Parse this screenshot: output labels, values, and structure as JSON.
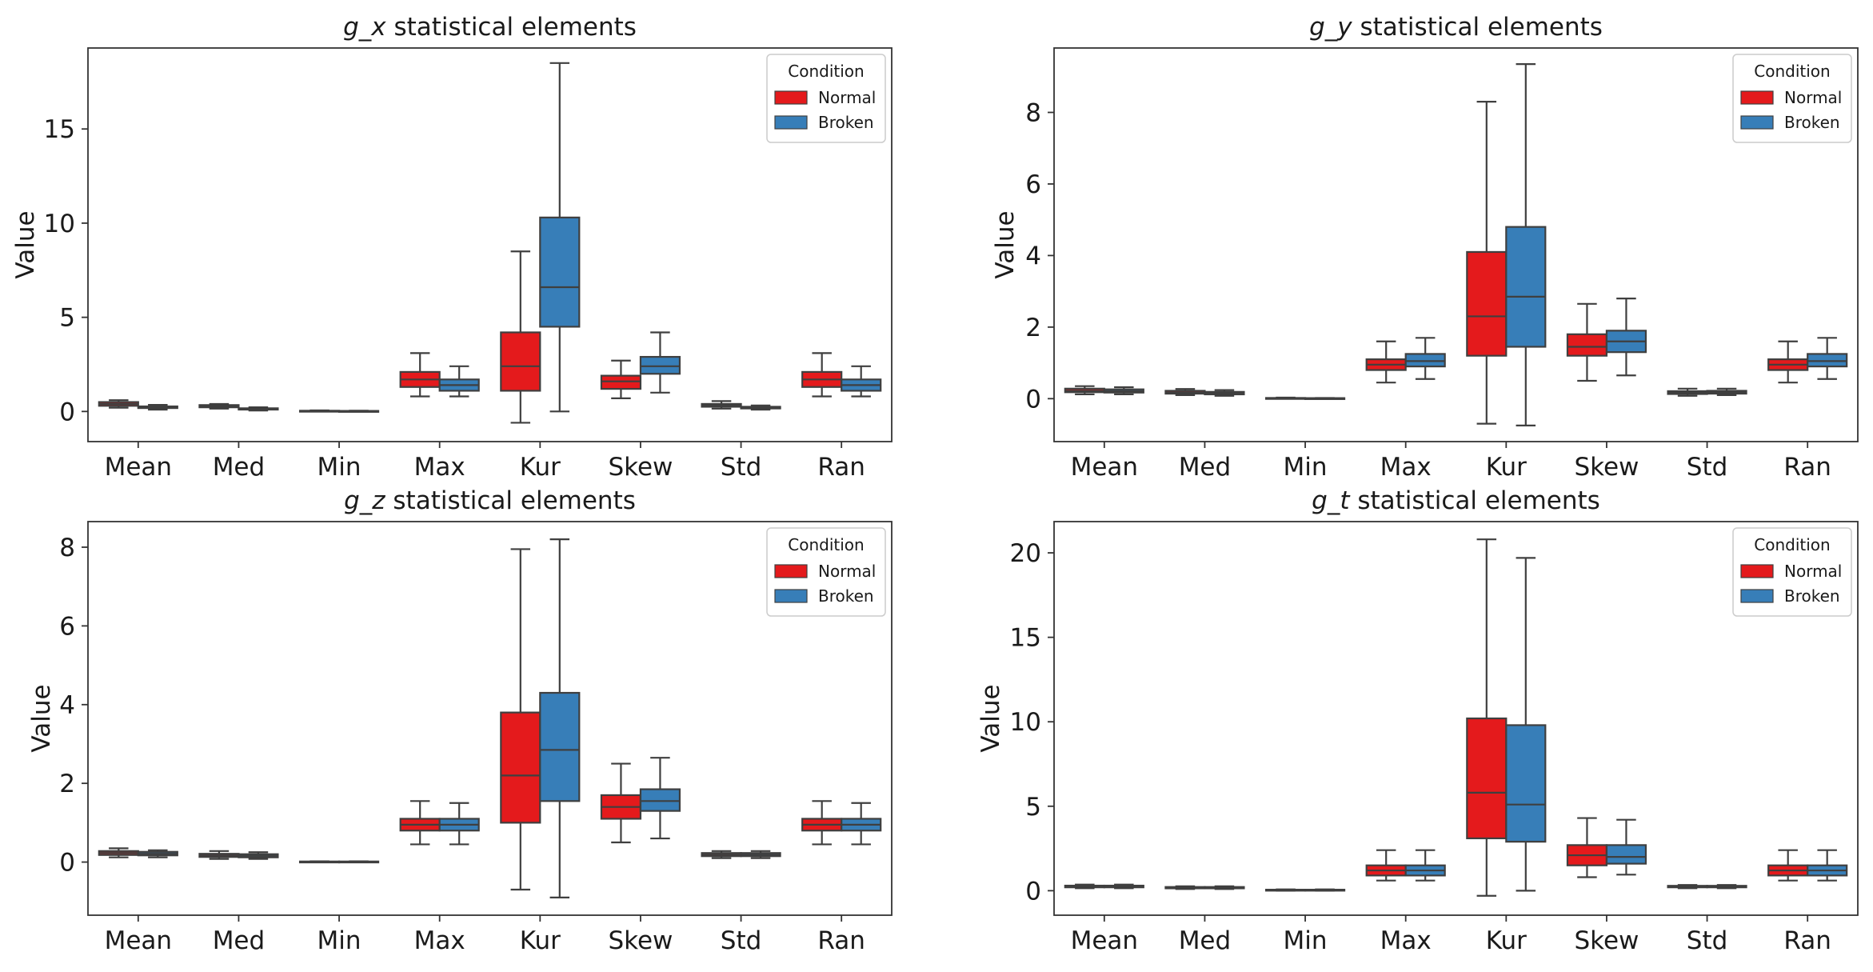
{
  "chart_data": [
    {
      "type": "boxplot",
      "title_var": "g_x",
      "title_rest": " statistical elements",
      "ylabel": "Value",
      "ylim": [
        -1.6,
        19.3
      ],
      "yticks": [
        0,
        5,
        10,
        15
      ],
      "categories": [
        "Mean",
        "Med",
        "Min",
        "Max",
        "Kur",
        "Skew",
        "Std",
        "Ran"
      ],
      "legend": {
        "title": "Condition",
        "items": [
          "Normal",
          "Broken"
        ]
      },
      "series": [
        {
          "name": "Normal",
          "color": "#e41a1c",
          "boxes": [
            {
              "min": 0.2,
              "q1": 0.3,
              "med": 0.4,
              "q3": 0.5,
              "max": 0.6
            },
            {
              "min": 0.15,
              "q1": 0.22,
              "med": 0.28,
              "q3": 0.34,
              "max": 0.4
            },
            {
              "min": 0.0,
              "q1": 0.02,
              "med": 0.03,
              "q3": 0.04,
              "max": 0.06
            },
            {
              "min": 0.8,
              "q1": 1.3,
              "med": 1.7,
              "q3": 2.1,
              "max": 3.1
            },
            {
              "min": -0.6,
              "q1": 1.1,
              "med": 2.4,
              "q3": 4.2,
              "max": 8.5
            },
            {
              "min": 0.7,
              "q1": 1.2,
              "med": 1.6,
              "q3": 1.9,
              "max": 2.7
            },
            {
              "min": 0.15,
              "q1": 0.25,
              "med": 0.32,
              "q3": 0.4,
              "max": 0.55
            },
            {
              "min": 0.8,
              "q1": 1.3,
              "med": 1.7,
              "q3": 2.1,
              "max": 3.1
            }
          ]
        },
        {
          "name": "Broken",
          "color": "#377eb8",
          "boxes": [
            {
              "min": 0.1,
              "q1": 0.18,
              "med": 0.22,
              "q3": 0.27,
              "max": 0.35
            },
            {
              "min": 0.05,
              "q1": 0.1,
              "med": 0.13,
              "q3": 0.17,
              "max": 0.22
            },
            {
              "min": 0.0,
              "q1": 0.01,
              "med": 0.02,
              "q3": 0.03,
              "max": 0.04
            },
            {
              "min": 0.8,
              "q1": 1.1,
              "med": 1.4,
              "q3": 1.7,
              "max": 2.4
            },
            {
              "min": 0.0,
              "q1": 4.5,
              "med": 6.6,
              "q3": 10.3,
              "max": 18.5
            },
            {
              "min": 1.0,
              "q1": 2.0,
              "med": 2.4,
              "q3": 2.9,
              "max": 4.2
            },
            {
              "min": 0.1,
              "q1": 0.16,
              "med": 0.2,
              "q3": 0.25,
              "max": 0.32
            },
            {
              "min": 0.8,
              "q1": 1.1,
              "med": 1.4,
              "q3": 1.7,
              "max": 2.4
            }
          ]
        }
      ]
    },
    {
      "type": "boxplot",
      "title_var": "g_y",
      "title_rest": " statistical elements",
      "ylabel": "Value",
      "ylim": [
        -1.2,
        9.8
      ],
      "yticks": [
        0,
        2,
        4,
        6,
        8
      ],
      "categories": [
        "Mean",
        "Med",
        "Min",
        "Max",
        "Kur",
        "Skew",
        "Std",
        "Ran"
      ],
      "legend": {
        "title": "Condition",
        "items": [
          "Normal",
          "Broken"
        ]
      },
      "series": [
        {
          "name": "Normal",
          "color": "#e41a1c",
          "boxes": [
            {
              "min": 0.12,
              "q1": 0.18,
              "med": 0.22,
              "q3": 0.28,
              "max": 0.35
            },
            {
              "min": 0.1,
              "q1": 0.14,
              "med": 0.17,
              "q3": 0.22,
              "max": 0.27
            },
            {
              "min": 0.0,
              "q1": 0.0,
              "med": 0.01,
              "q3": 0.02,
              "max": 0.03
            },
            {
              "min": 0.45,
              "q1": 0.8,
              "med": 0.95,
              "q3": 1.1,
              "max": 1.6
            },
            {
              "min": -0.7,
              "q1": 1.2,
              "med": 2.3,
              "q3": 4.1,
              "max": 8.3
            },
            {
              "min": 0.5,
              "q1": 1.2,
              "med": 1.45,
              "q3": 1.8,
              "max": 2.65
            },
            {
              "min": 0.08,
              "q1": 0.13,
              "med": 0.17,
              "q3": 0.21,
              "max": 0.28
            },
            {
              "min": 0.45,
              "q1": 0.8,
              "med": 0.95,
              "q3": 1.1,
              "max": 1.6
            }
          ]
        },
        {
          "name": "Broken",
          "color": "#377eb8",
          "boxes": [
            {
              "min": 0.12,
              "q1": 0.17,
              "med": 0.21,
              "q3": 0.26,
              "max": 0.32
            },
            {
              "min": 0.08,
              "q1": 0.12,
              "med": 0.15,
              "q3": 0.19,
              "max": 0.24
            },
            {
              "min": 0.0,
              "q1": 0.0,
              "med": 0.01,
              "q3": 0.015,
              "max": 0.02
            },
            {
              "min": 0.55,
              "q1": 0.9,
              "med": 1.05,
              "q3": 1.25,
              "max": 1.7
            },
            {
              "min": -0.75,
              "q1": 1.45,
              "med": 2.85,
              "q3": 4.8,
              "max": 9.35
            },
            {
              "min": 0.65,
              "q1": 1.3,
              "med": 1.6,
              "q3": 1.9,
              "max": 2.8
            },
            {
              "min": 0.1,
              "q1": 0.14,
              "med": 0.18,
              "q3": 0.22,
              "max": 0.28
            },
            {
              "min": 0.55,
              "q1": 0.9,
              "med": 1.05,
              "q3": 1.25,
              "max": 1.7
            }
          ]
        }
      ]
    },
    {
      "type": "boxplot",
      "title_var": "g_z",
      "title_rest": " statistical elements",
      "ylabel": "Value",
      "ylim": [
        -1.35,
        8.65
      ],
      "yticks": [
        0,
        2,
        4,
        6,
        8
      ],
      "categories": [
        "Mean",
        "Med",
        "Min",
        "Max",
        "Kur",
        "Skew",
        "Std",
        "Ran"
      ],
      "legend": {
        "title": "Condition",
        "items": [
          "Normal",
          "Broken"
        ]
      },
      "series": [
        {
          "name": "Normal",
          "color": "#e41a1c",
          "boxes": [
            {
              "min": 0.12,
              "q1": 0.18,
              "med": 0.23,
              "q3": 0.28,
              "max": 0.35
            },
            {
              "min": 0.08,
              "q1": 0.13,
              "med": 0.17,
              "q3": 0.21,
              "max": 0.28
            },
            {
              "min": 0.0,
              "q1": 0.0,
              "med": 0.01,
              "q3": 0.015,
              "max": 0.02
            },
            {
              "min": 0.45,
              "q1": 0.8,
              "med": 0.95,
              "q3": 1.1,
              "max": 1.55
            },
            {
              "min": -0.7,
              "q1": 1.0,
              "med": 2.2,
              "q3": 3.8,
              "max": 7.95
            },
            {
              "min": 0.5,
              "q1": 1.1,
              "med": 1.4,
              "q3": 1.7,
              "max": 2.5
            },
            {
              "min": 0.1,
              "q1": 0.15,
              "med": 0.19,
              "q3": 0.23,
              "max": 0.28
            },
            {
              "min": 0.45,
              "q1": 0.8,
              "med": 0.95,
              "q3": 1.1,
              "max": 1.55
            }
          ]
        },
        {
          "name": "Broken",
          "color": "#377eb8",
          "boxes": [
            {
              "min": 0.12,
              "q1": 0.17,
              "med": 0.21,
              "q3": 0.26,
              "max": 0.3
            },
            {
              "min": 0.08,
              "q1": 0.12,
              "med": 0.16,
              "q3": 0.2,
              "max": 0.25
            },
            {
              "min": 0.0,
              "q1": 0.0,
              "med": 0.01,
              "q3": 0.015,
              "max": 0.02
            },
            {
              "min": 0.45,
              "q1": 0.8,
              "med": 0.95,
              "q3": 1.1,
              "max": 1.5
            },
            {
              "min": -0.9,
              "q1": 1.55,
              "med": 2.85,
              "q3": 4.3,
              "max": 8.2
            },
            {
              "min": 0.6,
              "q1": 1.3,
              "med": 1.55,
              "q3": 1.85,
              "max": 2.65
            },
            {
              "min": 0.1,
              "q1": 0.15,
              "med": 0.19,
              "q3": 0.23,
              "max": 0.28
            },
            {
              "min": 0.45,
              "q1": 0.8,
              "med": 0.95,
              "q3": 1.1,
              "max": 1.5
            }
          ]
        }
      ]
    },
    {
      "type": "boxplot",
      "title_var": "g_t",
      "title_rest": " statistical elements",
      "ylabel": "Value",
      "ylim": [
        -1.45,
        21.85
      ],
      "yticks": [
        0,
        5,
        10,
        15,
        20
      ],
      "categories": [
        "Mean",
        "Med",
        "Min",
        "Max",
        "Kur",
        "Skew",
        "Std",
        "Ran"
      ],
      "legend": {
        "title": "Condition",
        "items": [
          "Normal",
          "Broken"
        ]
      },
      "series": [
        {
          "name": "Normal",
          "color": "#e41a1c",
          "boxes": [
            {
              "min": 0.15,
              "q1": 0.2,
              "med": 0.25,
              "q3": 0.3,
              "max": 0.36
            },
            {
              "min": 0.1,
              "q1": 0.14,
              "med": 0.18,
              "q3": 0.22,
              "max": 0.26
            },
            {
              "min": 0.0,
              "q1": 0.02,
              "med": 0.04,
              "q3": 0.06,
              "max": 0.08
            },
            {
              "min": 0.6,
              "q1": 0.9,
              "med": 1.2,
              "q3": 1.5,
              "max": 2.4
            },
            {
              "min": -0.3,
              "q1": 3.1,
              "med": 5.8,
              "q3": 10.2,
              "max": 20.8
            },
            {
              "min": 0.8,
              "q1": 1.5,
              "med": 2.1,
              "q3": 2.7,
              "max": 4.3
            },
            {
              "min": 0.15,
              "q1": 0.2,
              "med": 0.24,
              "q3": 0.29,
              "max": 0.34
            },
            {
              "min": 0.6,
              "q1": 0.9,
              "med": 1.2,
              "q3": 1.5,
              "max": 2.4
            }
          ]
        },
        {
          "name": "Broken",
          "color": "#377eb8",
          "boxes": [
            {
              "min": 0.15,
              "q1": 0.2,
              "med": 0.25,
              "q3": 0.3,
              "max": 0.36
            },
            {
              "min": 0.1,
              "q1": 0.14,
              "med": 0.18,
              "q3": 0.22,
              "max": 0.26
            },
            {
              "min": 0.0,
              "q1": 0.02,
              "med": 0.04,
              "q3": 0.06,
              "max": 0.08
            },
            {
              "min": 0.6,
              "q1": 0.9,
              "med": 1.2,
              "q3": 1.5,
              "max": 2.4
            },
            {
              "min": 0.0,
              "q1": 2.9,
              "med": 5.1,
              "q3": 9.8,
              "max": 19.7
            },
            {
              "min": 0.95,
              "q1": 1.6,
              "med": 2.0,
              "q3": 2.7,
              "max": 4.2
            },
            {
              "min": 0.15,
              "q1": 0.2,
              "med": 0.24,
              "q3": 0.29,
              "max": 0.34
            },
            {
              "min": 0.6,
              "q1": 0.9,
              "med": 1.2,
              "q3": 1.5,
              "max": 2.4
            }
          ]
        }
      ]
    }
  ]
}
